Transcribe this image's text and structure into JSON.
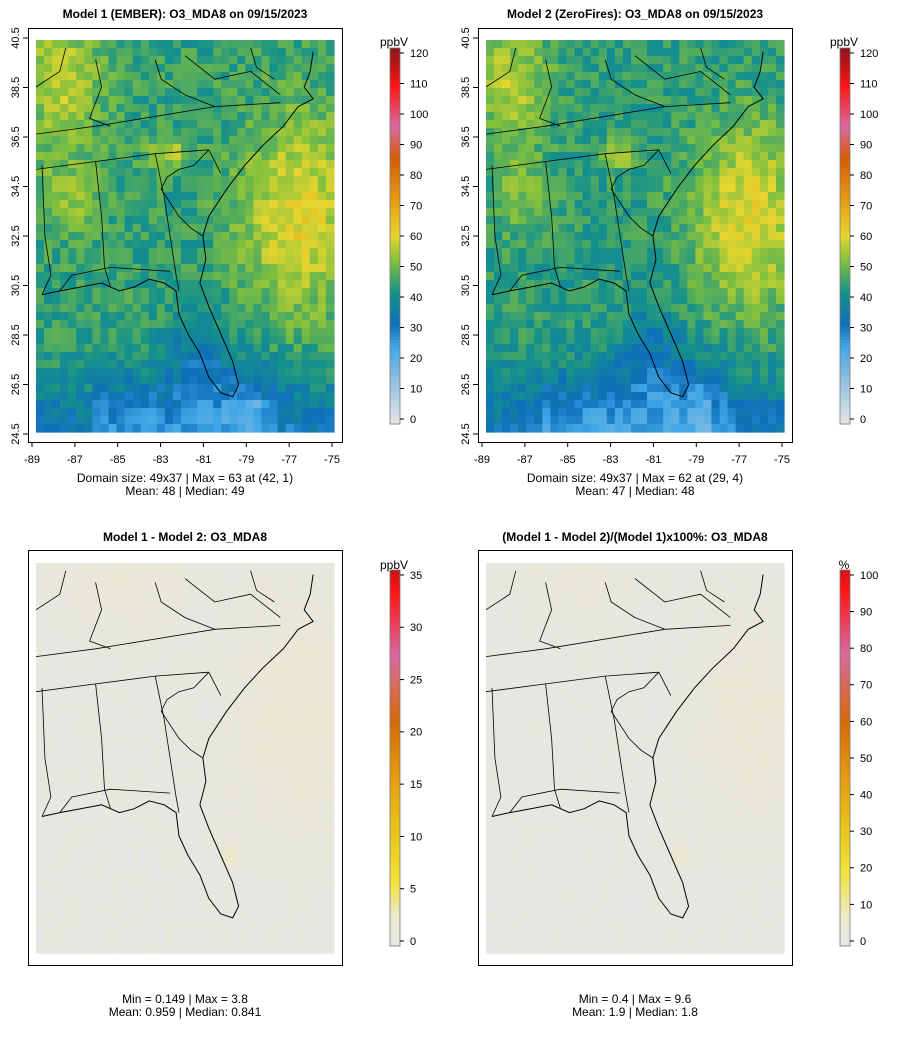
{
  "chart_data": [
    {
      "type": "heatmap",
      "title": "Model 1 (EMBER): O3_MDA8 on 09/15/2023",
      "units": "ppbV",
      "lon_ticks": [
        "-89",
        "-87",
        "-85",
        "-83",
        "-81",
        "-79",
        "-77",
        "-75"
      ],
      "lat_ticks": [
        "24.5",
        "26.5",
        "28.5",
        "30.5",
        "32.5",
        "34.5",
        "36.5",
        "38.5",
        "40.5"
      ],
      "colorbar_ticks": [
        "0",
        "10",
        "20",
        "30",
        "40",
        "50",
        "60",
        "70",
        "80",
        "90",
        "100",
        "110",
        "120"
      ],
      "color_range": [
        0,
        120
      ],
      "stats": [
        "Domain size: 49x37 | Max = 63 at (42, 1)",
        "Mean: 48 |  Median: 49"
      ],
      "field": "absolute",
      "domain_mean": 48,
      "domain_max": 63
    },
    {
      "type": "heatmap",
      "title": "Model 2 (ZeroFires): O3_MDA8 on 09/15/2023",
      "units": "ppbV",
      "lon_ticks": [
        "-89",
        "-87",
        "-85",
        "-83",
        "-81",
        "-79",
        "-77",
        "-75"
      ],
      "lat_ticks": [
        "24.5",
        "26.5",
        "28.5",
        "30.5",
        "32.5",
        "34.5",
        "36.5",
        "38.5",
        "40.5"
      ],
      "colorbar_ticks": [
        "0",
        "10",
        "20",
        "30",
        "40",
        "50",
        "60",
        "70",
        "80",
        "90",
        "100",
        "110",
        "120"
      ],
      "color_range": [
        0,
        120
      ],
      "stats": [
        "Domain size: 49x37 | Max = 62 at (29, 4)",
        "Mean: 47 |  Median: 48"
      ],
      "field": "absolute",
      "domain_mean": 47,
      "domain_max": 62
    },
    {
      "type": "heatmap",
      "title": "Model 1 - Model 2: O3_MDA8",
      "units": "ppbV",
      "colorbar_ticks": [
        "0",
        "5",
        "10",
        "15",
        "20",
        "25",
        "30",
        "35"
      ],
      "color_range": [
        0,
        35
      ],
      "stats": [
        "Min = 0.149 | Max = 3.8",
        "Mean: 0.959 |  Median: 0.841"
      ],
      "field": "difference",
      "domain_mean": 0.959,
      "domain_max": 3.8
    },
    {
      "type": "heatmap",
      "title": "(Model 1 - Model 2)/(Model 1)x100%: O3_MDA8",
      "units": "%",
      "colorbar_ticks": [
        "0",
        "10",
        "20",
        "30",
        "40",
        "50",
        "60",
        "70",
        "80",
        "90",
        "100"
      ],
      "color_range": [
        0,
        100
      ],
      "stats": [
        "Min = 0.4 | Max = 9.6",
        "Mean: 1.9 |  Median: 1.8"
      ],
      "field": "percent",
      "domain_mean": 1.9,
      "domain_max": 9.6
    }
  ],
  "palette": {
    "stops": [
      "#e6e6e6",
      "#39a7e3",
      "#0f6fba",
      "#14908a",
      "#7fbd3f",
      "#e9d635",
      "#e79a12",
      "#d75a06",
      "#d85f98",
      "#ff1010",
      "#8b1418"
    ],
    "land_line": "#000000"
  }
}
